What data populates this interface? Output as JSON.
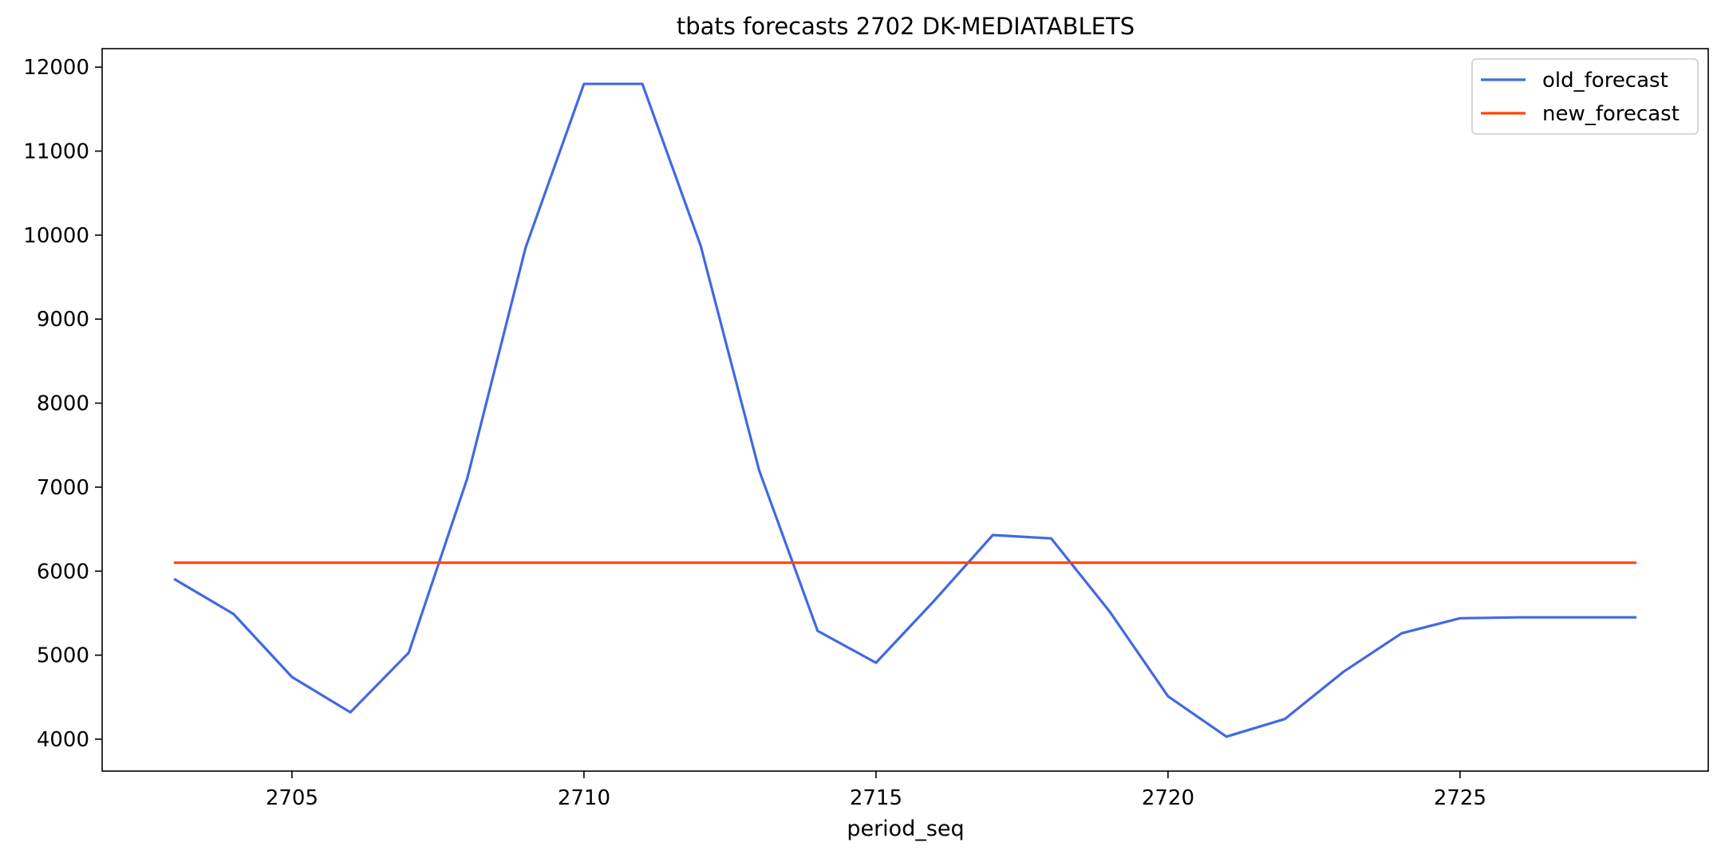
{
  "chart_data": {
    "type": "line",
    "title": "tbats forecasts 2702 DK-MEDIATABLETS",
    "xlabel": "period_seq",
    "ylabel": "",
    "xlim": [
      2701.75,
      2729.25
    ],
    "ylim": [
      3620,
      12220
    ],
    "x_ticks": [
      2705,
      2710,
      2715,
      2720,
      2725
    ],
    "y_ticks": [
      4000,
      5000,
      6000,
      7000,
      8000,
      9000,
      10000,
      11000,
      12000
    ],
    "grid": false,
    "legend": "top-right",
    "x": [
      2703,
      2704,
      2705,
      2706,
      2707,
      2708,
      2709,
      2710,
      2711,
      2712,
      2713,
      2714,
      2715,
      2716,
      2717,
      2718,
      2719,
      2720,
      2721,
      2722,
      2723,
      2724,
      2725,
      2726,
      2727,
      2728
    ],
    "series": [
      {
        "name": "old_forecast",
        "color": "#4169e1",
        "values": [
          5900,
          5490,
          4740,
          4320,
          5030,
          7100,
          9850,
          11800,
          11800,
          9870,
          7200,
          5290,
          4910,
          5650,
          6430,
          6390,
          5520,
          4510,
          4030,
          4240,
          4800,
          5260,
          5440,
          5450,
          5450,
          5450
        ]
      },
      {
        "name": "new_forecast",
        "color": "#ff4500",
        "values": [
          6100,
          6100,
          6100,
          6100,
          6100,
          6100,
          6100,
          6100,
          6100,
          6100,
          6100,
          6100,
          6100,
          6100,
          6100,
          6100,
          6100,
          6100,
          6100,
          6100,
          6100,
          6100,
          6100,
          6100,
          6100,
          6100
        ]
      }
    ]
  }
}
